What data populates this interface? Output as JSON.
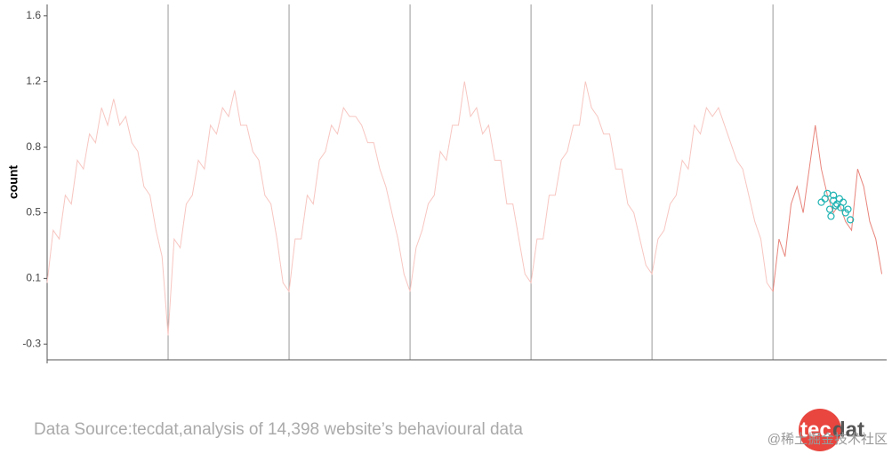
{
  "chart_data": {
    "type": "line",
    "y_label": "count",
    "xlim": [
      0,
      6.94
    ],
    "xticks": [
      1,
      2,
      3,
      4,
      5,
      6
    ],
    "ylim": [
      -0.39,
      1.64
    ],
    "yticks": [
      {
        "value": -0.3,
        "label": "-0.3"
      },
      {
        "value": 0.075,
        "label": "0.1"
      },
      {
        "value": 0.45,
        "label": "0.5"
      },
      {
        "value": 0.825,
        "label": "0.8"
      },
      {
        "value": 1.2,
        "label": "1.2"
      },
      {
        "value": 1.575,
        "label": "1.6"
      }
    ],
    "series": [
      {
        "mode": "line",
        "color": "#f7c6c1",
        "x": [
          0,
          0.05,
          0.1,
          0.15,
          0.2,
          0.25,
          0.3,
          0.35,
          0.4,
          0.45,
          0.5,
          0.55,
          0.6,
          0.65,
          0.7,
          0.75,
          0.8,
          0.85,
          0.9,
          0.95,
          1,
          1.05,
          1.1,
          1.15,
          1.2,
          1.25,
          1.3,
          1.35,
          1.4,
          1.45,
          1.5,
          1.55,
          1.6,
          1.65,
          1.7,
          1.75,
          1.8,
          1.85,
          1.9,
          1.95,
          2,
          2.05,
          2.1,
          2.15,
          2.2,
          2.25,
          2.3,
          2.35,
          2.4,
          2.45,
          2.5,
          2.55,
          2.6,
          2.65,
          2.7,
          2.75,
          2.8,
          2.85,
          2.9,
          2.95,
          3,
          3.05,
          3.1,
          3.15,
          3.2,
          3.25,
          3.3,
          3.35,
          3.4,
          3.45,
          3.5,
          3.55,
          3.6,
          3.65,
          3.7,
          3.75,
          3.8,
          3.85,
          3.9,
          3.95,
          4,
          4.05,
          4.1,
          4.15,
          4.2,
          4.25,
          4.3,
          4.35,
          4.4,
          4.45,
          4.5,
          4.55,
          4.6,
          4.65,
          4.7,
          4.75,
          4.8,
          4.85,
          4.9,
          4.95,
          5,
          5.05,
          5.1,
          5.15,
          5.2,
          5.25,
          5.3,
          5.35,
          5.4,
          5.45,
          5.5,
          5.55,
          5.6,
          5.65,
          5.7,
          5.75,
          5.8,
          5.85,
          5.9,
          5.95,
          6
        ],
        "values": [
          0.05,
          0.35,
          0.3,
          0.55,
          0.5,
          0.75,
          0.7,
          0.9,
          0.85,
          1.05,
          0.95,
          1.1,
          0.95,
          1.0,
          0.85,
          0.8,
          0.6,
          0.55,
          0.35,
          0.2,
          -0.25,
          0.3,
          0.25,
          0.5,
          0.55,
          0.75,
          0.7,
          0.95,
          0.9,
          1.05,
          1.0,
          1.15,
          0.95,
          0.95,
          0.8,
          0.75,
          0.55,
          0.5,
          0.3,
          0.05,
          0.0,
          0.3,
          0.3,
          0.55,
          0.5,
          0.75,
          0.8,
          0.95,
          0.9,
          1.05,
          1.0,
          1.0,
          0.95,
          0.85,
          0.85,
          0.7,
          0.6,
          0.45,
          0.3,
          0.1,
          0.0,
          0.25,
          0.35,
          0.5,
          0.55,
          0.8,
          0.75,
          0.95,
          0.95,
          1.2,
          1.0,
          1.05,
          0.9,
          0.95,
          0.75,
          0.75,
          0.5,
          0.5,
          0.3,
          0.1,
          0.05,
          0.3,
          0.3,
          0.55,
          0.55,
          0.75,
          0.8,
          0.95,
          0.95,
          1.2,
          1.05,
          1.0,
          0.9,
          0.9,
          0.7,
          0.7,
          0.5,
          0.45,
          0.3,
          0.15,
          0.1,
          0.3,
          0.35,
          0.5,
          0.55,
          0.75,
          0.7,
          0.95,
          0.9,
          1.05,
          1.0,
          1.05,
          0.95,
          0.85,
          0.75,
          0.7,
          0.55,
          0.4,
          0.3,
          0.05,
          0.0
        ]
      },
      {
        "mode": "line",
        "color": "#e8857c",
        "x": [
          6,
          6.05,
          6.1,
          6.15,
          6.2,
          6.25,
          6.3,
          6.35,
          6.4,
          6.45,
          6.5,
          6.55,
          6.6,
          6.65,
          6.7,
          6.75,
          6.8,
          6.85,
          6.9
        ],
        "values": [
          0.0,
          0.3,
          0.2,
          0.5,
          0.6,
          0.45,
          0.7,
          0.95,
          0.7,
          0.55,
          0.45,
          0.5,
          0.4,
          0.35,
          0.7,
          0.6,
          0.4,
          0.3,
          0.1
        ]
      },
      {
        "mode": "markers",
        "color": "#1fb3b3",
        "x": [
          6.4,
          6.43,
          6.45,
          6.47,
          6.48,
          6.5,
          6.5,
          6.52,
          6.53,
          6.55,
          6.56,
          6.58,
          6.6,
          6.62,
          6.64
        ],
        "values": [
          0.51,
          0.53,
          0.56,
          0.47,
          0.43,
          0.52,
          0.55,
          0.49,
          0.5,
          0.53,
          0.48,
          0.51,
          0.45,
          0.47,
          0.41
        ]
      }
    ],
    "source": "Data Source:tecdat,analysis of 14,398 website’s behavioural data",
    "logo": {
      "left": "tec",
      "right": "dat"
    },
    "watermark": "@稀土掘金技术社区"
  }
}
